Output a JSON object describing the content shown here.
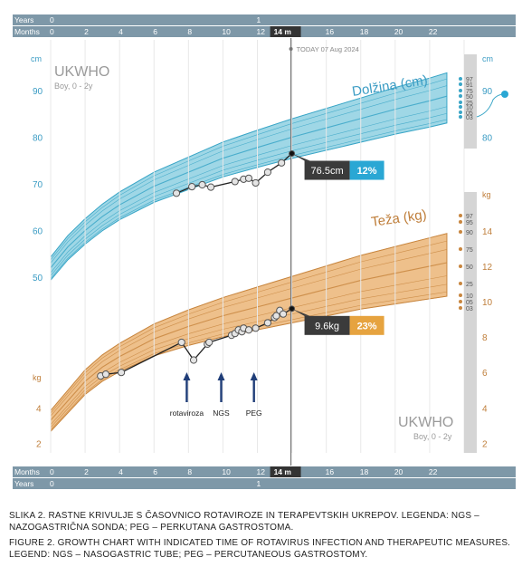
{
  "colors": {
    "header_bar": "#7e98a8",
    "header_text": "#ffffff",
    "length_band": "#9fd7e6",
    "length_outline": "#3aa6c7",
    "length_text": "#3b9cc4",
    "weight_band": "#eec08b",
    "weight_outline": "#c8863f",
    "weight_text": "#bf7e3a",
    "today_line": "#777777",
    "callout_dark": "#3b3b3b",
    "callout_blue": "#2aa7d4",
    "callout_orange": "#e6a33f",
    "arrow": "#1f3d78"
  },
  "header": {
    "years_label": "Years",
    "year_ticks": [
      "0",
      "1"
    ],
    "months_label": "Months",
    "month_ticks": [
      "0",
      "2",
      "4",
      "6",
      "8",
      "10",
      "12",
      "14 m",
      "16",
      "18",
      "20",
      "22"
    ],
    "current_age": "14 m",
    "today_text": "TODAY 07 Aug 2024"
  },
  "footer": {
    "months_label": "Months",
    "years_label": "Years",
    "month_ticks": [
      "0",
      "2",
      "4",
      "6",
      "8",
      "10",
      "12",
      "14 m",
      "16",
      "18",
      "20",
      "22"
    ],
    "year_ticks": [
      "0",
      "1"
    ],
    "current_age": "14 m"
  },
  "chart_data": [
    {
      "type": "line",
      "title": "Dolžina (cm)",
      "watermark": "UKWHO",
      "watermark_sub": "Boy, 0 - 2y",
      "unit": "cm",
      "ylim": [
        44,
        100
      ],
      "xlim": [
        0,
        24
      ],
      "y_ticks": [
        50,
        60,
        70,
        80,
        90
      ],
      "right_axis_ticks": [
        80,
        90
      ],
      "centiles": [
        "97",
        "91",
        "75",
        "50",
        "25",
        "10",
        "03",
        "01"
      ],
      "centile_labels_shown": [
        "97",
        "91",
        "75",
        "50",
        "25",
        "10",
        "05",
        "03"
      ],
      "series": [
        {
          "name": "",
          "x": [
            7.3,
            8.2,
            8.8,
            9.3,
            10.7,
            11.2,
            11.5,
            11.9,
            12.6,
            13.4,
            14.0
          ],
          "y": [
            68.0,
            69.4,
            69.8,
            69.3,
            70.5,
            71.0,
            71.2,
            70.2,
            72.5,
            74.5,
            76.5
          ]
        }
      ],
      "current": {
        "value": "76.5cm",
        "centile": "12%"
      }
    },
    {
      "type": "line",
      "title": "Teža (kg)",
      "watermark": "UKWHO",
      "watermark_sub": "Boy, 0 - 2y",
      "unit": "kg",
      "ylim": [
        2,
        16
      ],
      "xlim": [
        0,
        24
      ],
      "y_ticks": [
        2,
        4
      ],
      "right_axis_ticks": [
        2,
        4,
        6,
        8,
        10,
        12,
        14
      ],
      "centiles": [
        "97",
        "91",
        "75",
        "50",
        "25",
        "10",
        "03",
        "01"
      ],
      "centile_labels_shown": [
        "97",
        "95",
        "90",
        "75",
        "50",
        "25",
        "10",
        "05",
        "03"
      ],
      "series": [
        {
          "name": "",
          "x": [
            2.9,
            3.2,
            4.1,
            7.6,
            8.3,
            9.1,
            9.2,
            10.5,
            10.7,
            10.9,
            11.1,
            11.2,
            11.5,
            11.9,
            12.6,
            13.0,
            13.1,
            13.3,
            13.5,
            14.0
          ],
          "y": [
            5.8,
            5.9,
            6.0,
            7.7,
            6.7,
            7.6,
            7.7,
            8.1,
            8.2,
            8.4,
            8.3,
            8.5,
            8.4,
            8.5,
            8.8,
            9.1,
            9.2,
            9.5,
            9.3,
            9.6
          ]
        }
      ],
      "current": {
        "value": "9.6kg",
        "centile": "23%"
      },
      "annotations": [
        {
          "label": "rotaviroza",
          "x": 7.9
        },
        {
          "label": "NGS",
          "x": 9.9
        },
        {
          "label": "PEG",
          "x": 11.8
        }
      ]
    }
  ],
  "caption": {
    "slovene": "SLIKA 2. RASTNE KRIVULJE S ČASOVNICO ROTAVIROZE IN TERAPEVTSKIH UKREPOV. LEGENDA: NGS – NAZOGASTRIČNA SONDA; PEG – PERKUTANA GASTROSTOMA.",
    "english": "FIGURE 2. GROWTH CHART WITH INDICATED TIME OF ROTAVIRUS INFECTION AND THERAPEUTIC MEASURES. LEGEND: NGS – NASOGASTRIC TUBE; PEG – PERCUTANEOUS GASTROSTOMY."
  }
}
